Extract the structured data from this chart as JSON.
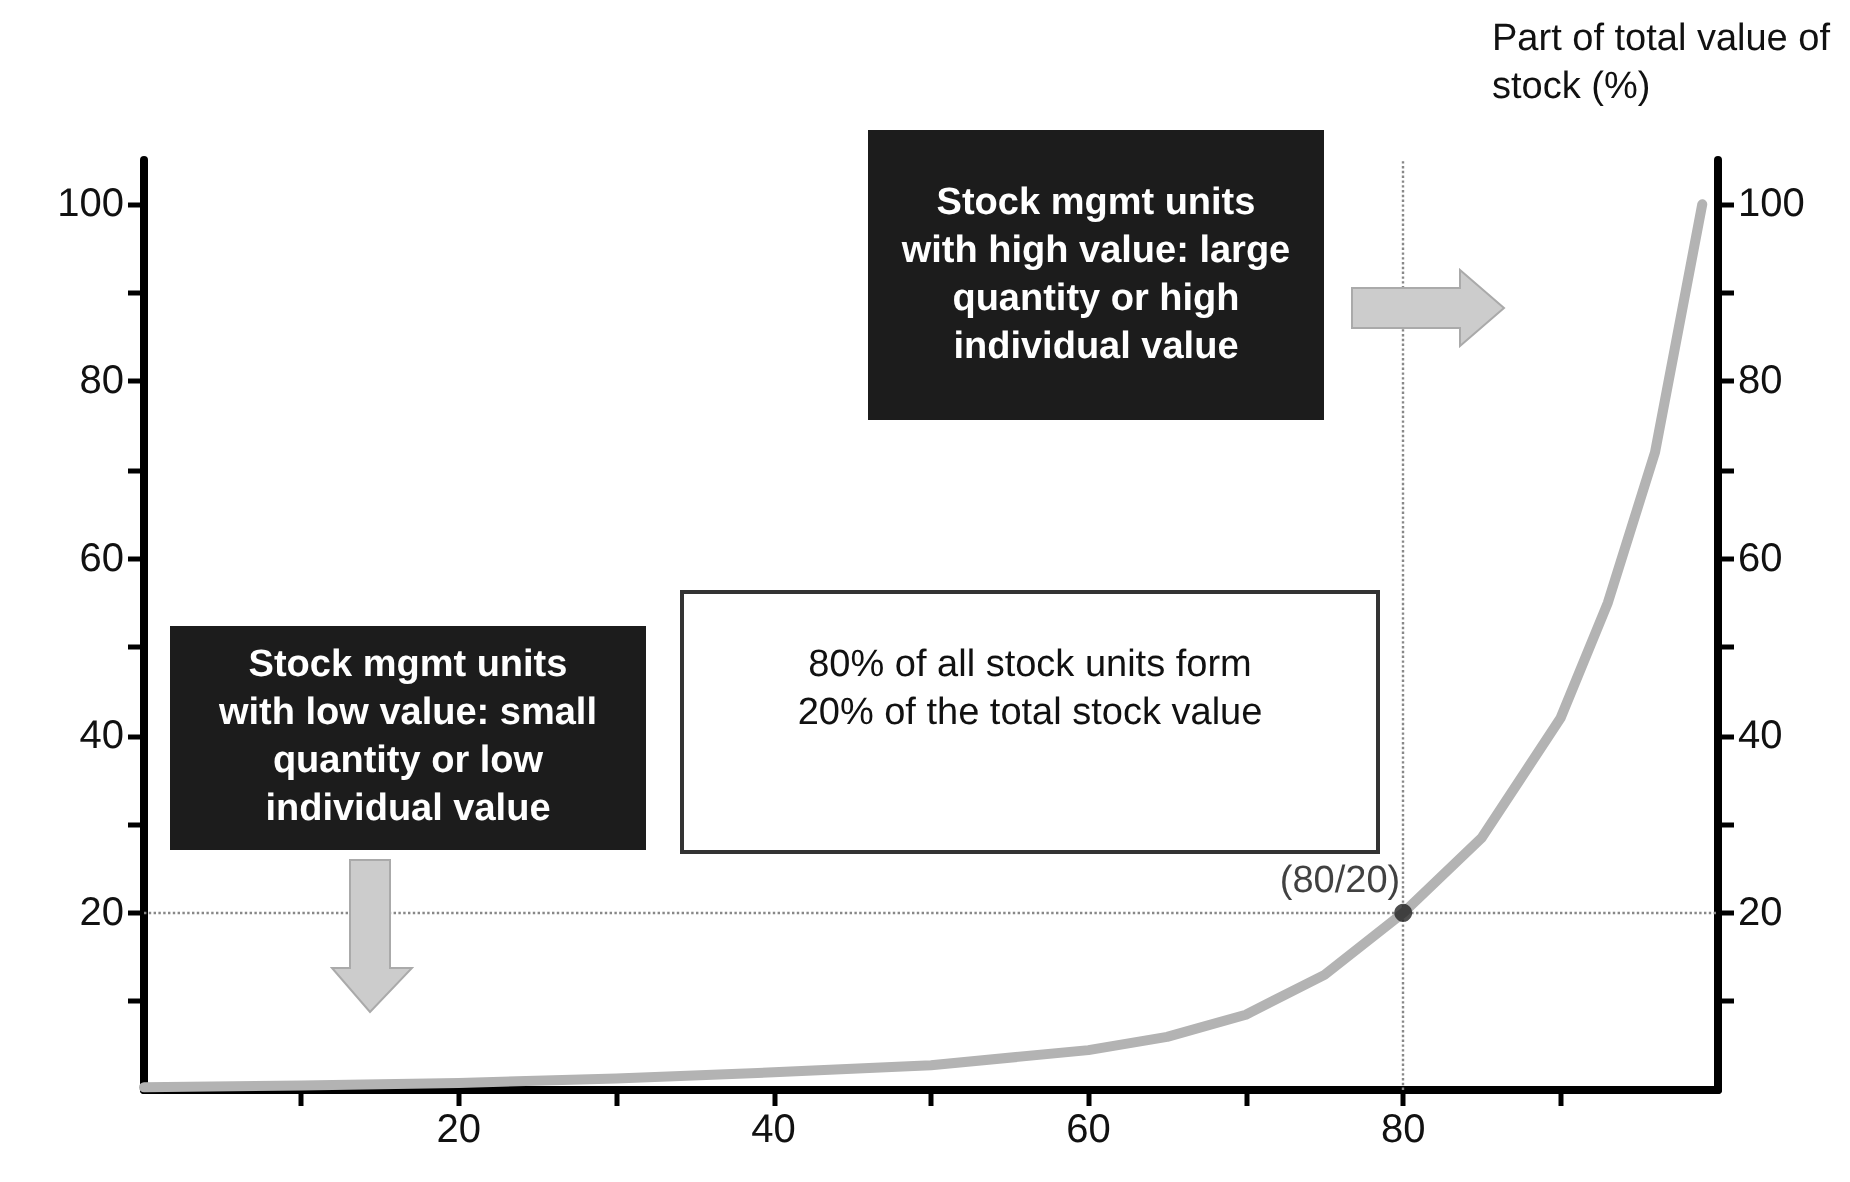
{
  "chart_data": {
    "type": "line",
    "x": [
      0,
      10,
      20,
      30,
      40,
      50,
      60,
      65,
      70,
      75,
      80,
      85,
      90,
      93,
      96,
      99
    ],
    "series": [
      {
        "color": "#b3b3b3",
        "values": [
          0.3,
          0.5,
          0.8,
          1.3,
          2,
          2.8,
          4.5,
          6,
          8.5,
          13,
          20,
          28.5,
          42,
          55,
          72,
          100
        ]
      }
    ],
    "xlim": [
      0,
      100
    ],
    "ylim": [
      0,
      105
    ],
    "y2lim": [
      0,
      105
    ],
    "xticks": [
      {
        "value": 10,
        "label": null
      },
      20,
      {
        "value": 30,
        "label": null
      },
      40,
      {
        "value": 50,
        "label": null
      },
      60,
      {
        "value": 70,
        "label": null
      },
      80,
      {
        "value": 90,
        "label": null
      }
    ],
    "yticks": [
      {
        "value": 10,
        "label": null
      },
      20,
      {
        "value": 30,
        "label": null
      },
      40,
      {
        "value": 50,
        "label": null
      },
      60,
      {
        "value": 70,
        "label": null
      },
      80,
      {
        "value": 90,
        "label": null
      },
      100
    ],
    "y2ticks": [
      {
        "value": 10,
        "label": null
      },
      20,
      {
        "value": 30,
        "label": null
      },
      40,
      {
        "value": 50,
        "label": null
      },
      60,
      {
        "value": 70,
        "label": null
      },
      80,
      {
        "value": 90,
        "label": null
      },
      100
    ],
    "y2label": "Part of total value of stock (%)",
    "ref_lines": [
      {
        "axis": "x",
        "value": 80,
        "label": null,
        "color": "#888888",
        "line_style": "dotted"
      },
      {
        "axis": "y",
        "value": 20,
        "label": null,
        "color": "#888888",
        "line_style": "dotted"
      }
    ],
    "annotations": [
      "Stock mgmt units with high value: large quantity or high individual value",
      "80% of all stock units form 20% of the total stock value",
      "Stock mgmt units with low value: small quantity or low individual value",
      {
        "text": "(80/20)",
        "x": 80,
        "y": 20
      }
    ],
    "marker": "none",
    "line_style": "solid",
    "grid": false
  }
}
